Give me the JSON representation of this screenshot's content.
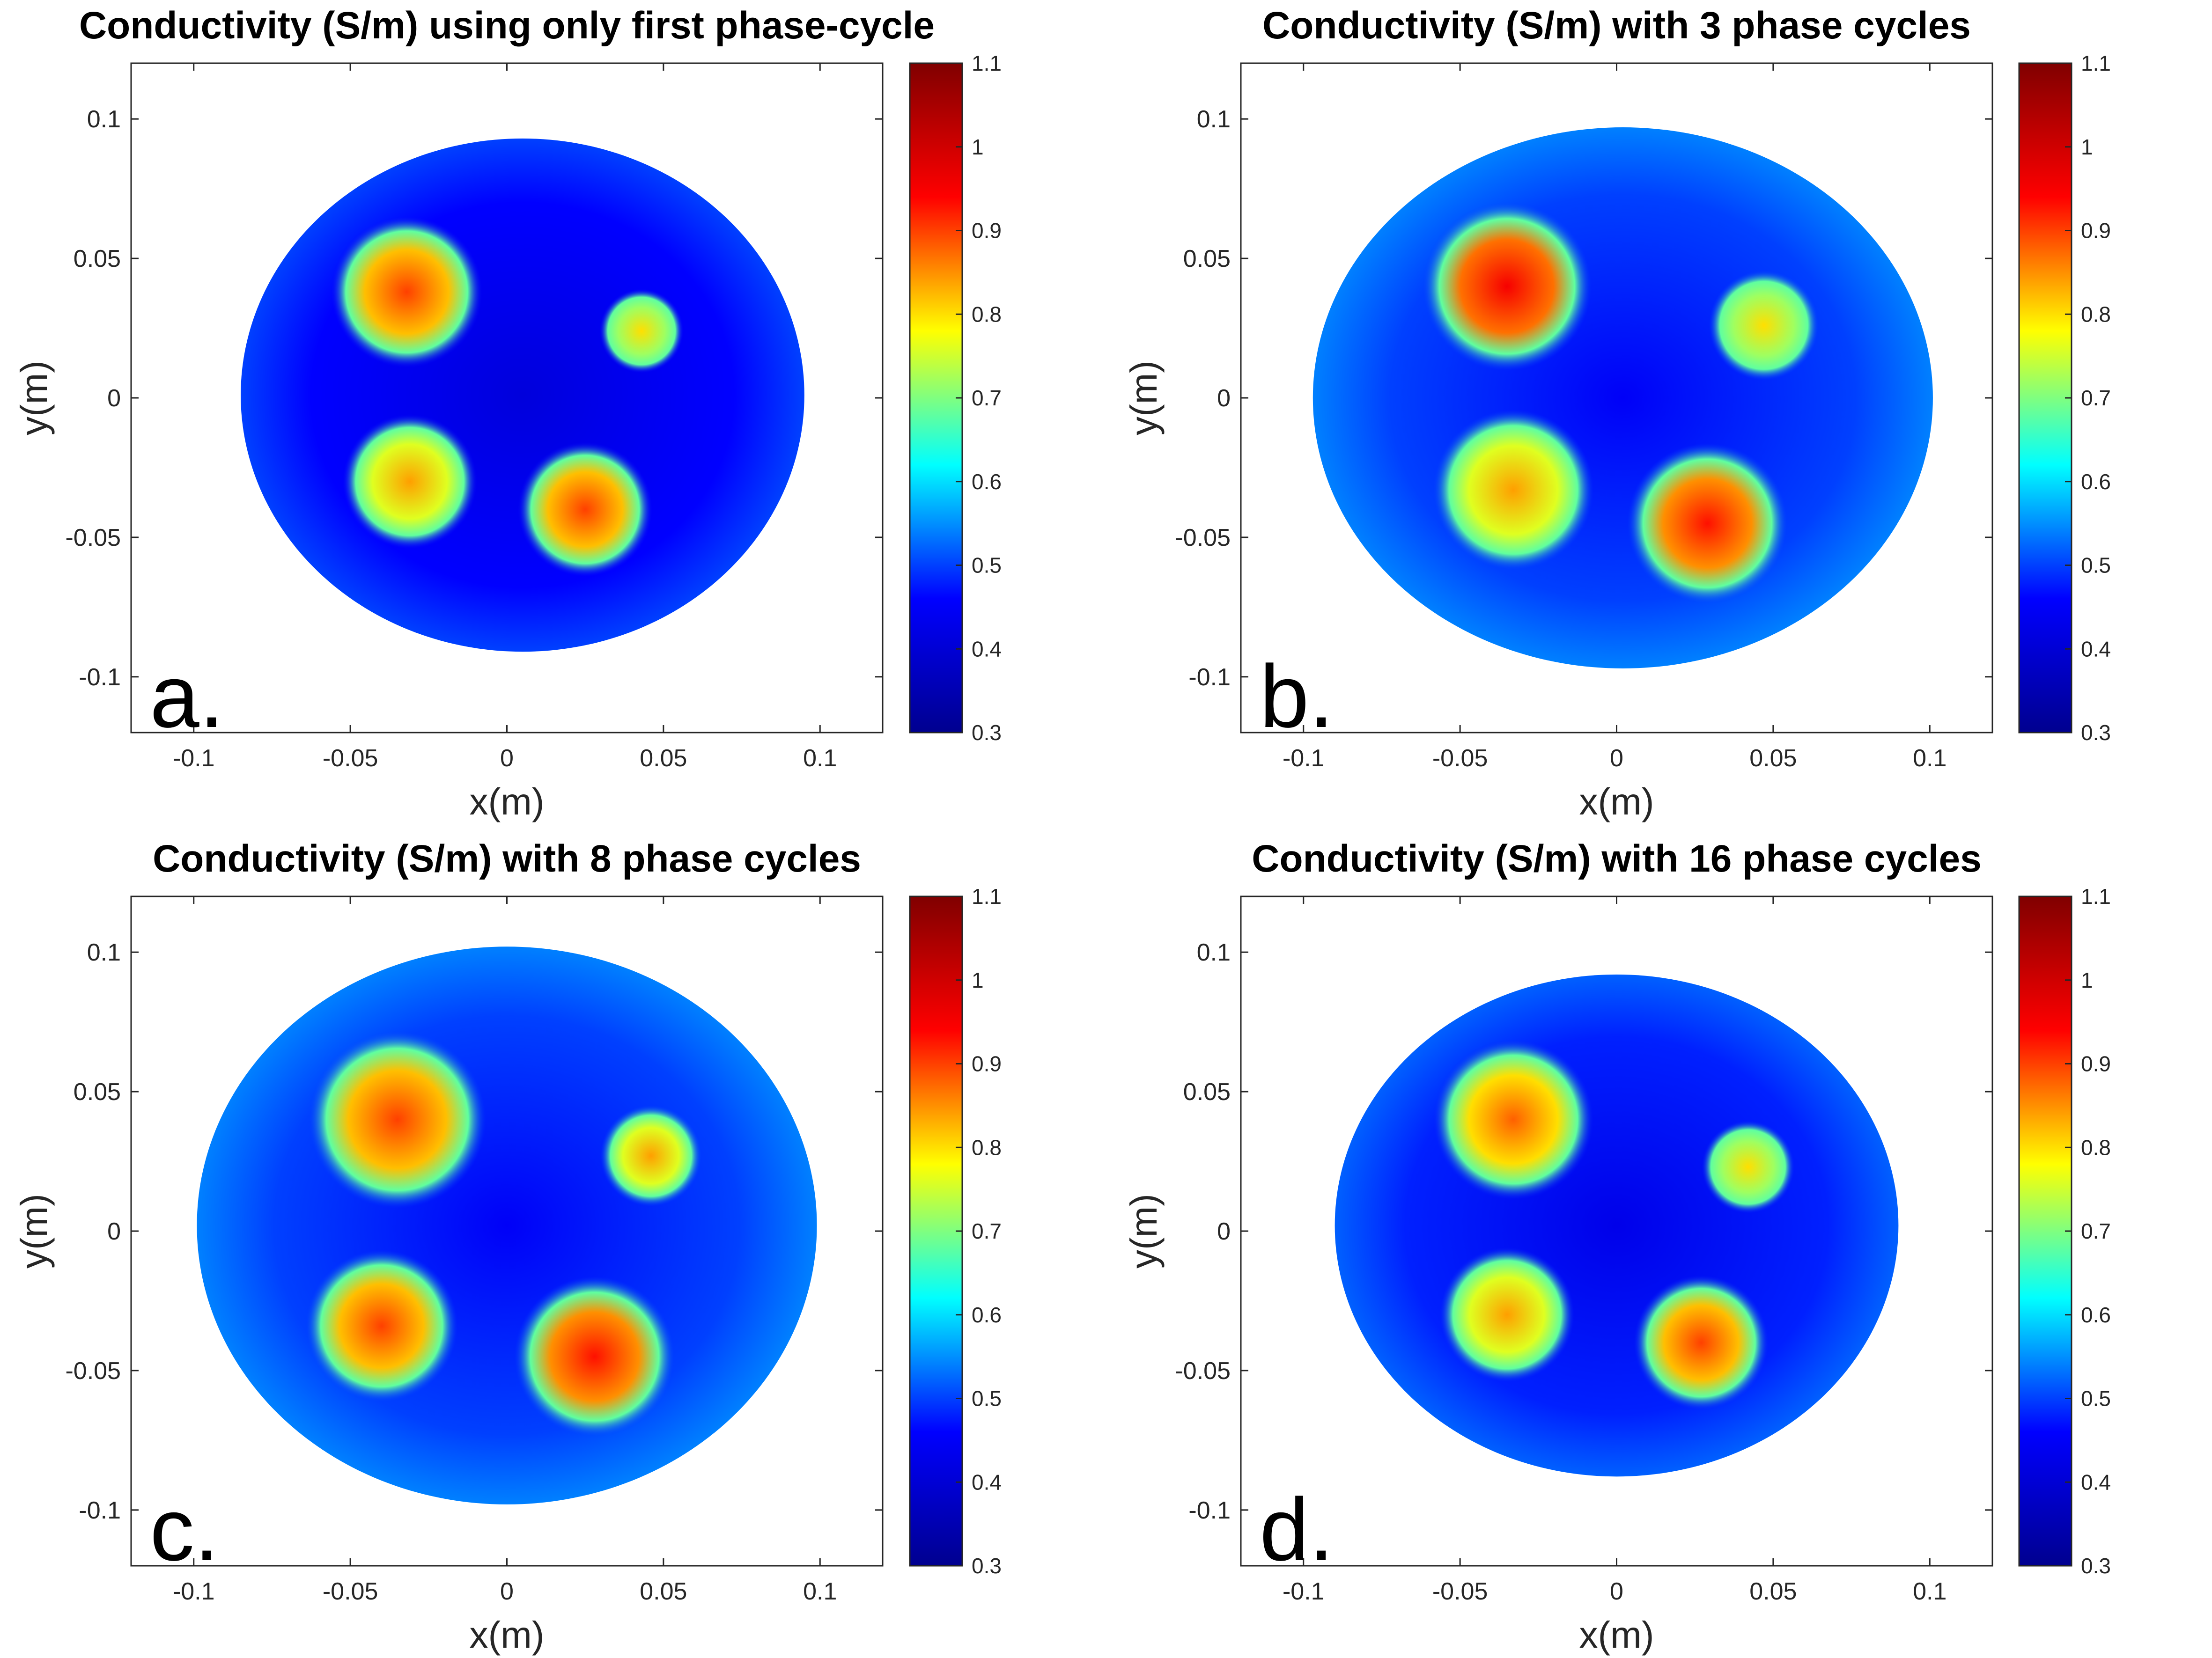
{
  "figure": {
    "colormap": [
      "#00008f",
      "#0000ff",
      "#00ffff",
      "#ffff00",
      "#ff0000",
      "#800000"
    ],
    "axes_color": "#262626",
    "panels": [
      {
        "panel_label": "a.",
        "chart_data": {
          "type": "heatmap",
          "title": "Conductivity (S/m) using only first phase-cycle",
          "xlabel": "x(m)",
          "ylabel": "y(m)",
          "xlim": [
            -0.12,
            0.12
          ],
          "ylim": [
            -0.12,
            0.12
          ],
          "x_ticks": [
            -0.1,
            -0.05,
            0,
            0.05,
            0.1
          ],
          "x_tick_labels": [
            "-0.1",
            "-0.05",
            "0",
            "0.05",
            "0.1"
          ],
          "y_ticks": [
            0.1,
            0.05,
            0,
            -0.05,
            -0.1
          ],
          "y_tick_labels": [
            "0.1",
            "0.05",
            "0",
            "-0.05",
            "-0.1"
          ],
          "colorbar": {
            "range": [
              0.3,
              1.1
            ],
            "ticks": [
              1.1,
              1,
              0.9,
              0.8,
              0.7,
              0.6,
              0.5,
              0.4,
              0.3
            ],
            "tick_labels": [
              "1.1",
              "1",
              "0.9",
              "0.8",
              "0.7",
              "0.6",
              "0.5",
              "0.4",
              "0.3"
            ]
          },
          "phantom": {
            "center": [
              0.005,
              0.001
            ],
            "rx": 0.09,
            "ry": 0.092,
            "background": 0.46
          },
          "inclusions": [
            {
              "x": -0.032,
              "y": 0.038,
              "r": 0.018,
              "peak": 0.9
            },
            {
              "x": 0.043,
              "y": 0.024,
              "r": 0.01,
              "peak": 0.8
            },
            {
              "x": -0.031,
              "y": -0.03,
              "r": 0.016,
              "peak": 0.84
            },
            {
              "x": 0.025,
              "y": -0.04,
              "r": 0.016,
              "peak": 0.9
            }
          ]
        }
      },
      {
        "panel_label": "b.",
        "chart_data": {
          "type": "heatmap",
          "title": "Conductivity (S/m) with 3 phase cycles",
          "xlabel": "x(m)",
          "ylabel": "y(m)",
          "xlim": [
            -0.12,
            0.12
          ],
          "ylim": [
            -0.12,
            0.12
          ],
          "x_ticks": [
            -0.1,
            -0.05,
            0,
            0.05,
            0.1
          ],
          "x_tick_labels": [
            "-0.1",
            "-0.05",
            "0",
            "0.05",
            "0.1"
          ],
          "y_ticks": [
            0.1,
            0.05,
            0,
            -0.05,
            -0.1
          ],
          "y_tick_labels": [
            "0.1",
            "0.05",
            "0",
            "-0.05",
            "-0.1"
          ],
          "colorbar": {
            "range": [
              0.3,
              1.1
            ],
            "ticks": [
              1.1,
              1,
              0.9,
              0.8,
              0.7,
              0.6,
              0.5,
              0.4,
              0.3
            ],
            "tick_labels": [
              "1.1",
              "1",
              "0.9",
              "0.8",
              "0.7",
              "0.6",
              "0.5",
              "0.4",
              "0.3"
            ]
          },
          "phantom": {
            "center": [
              0.002,
              0.0
            ],
            "rx": 0.099,
            "ry": 0.097,
            "background": 0.5
          },
          "inclusions": [
            {
              "x": -0.035,
              "y": 0.04,
              "r": 0.02,
              "peak": 0.95
            },
            {
              "x": 0.047,
              "y": 0.026,
              "r": 0.013,
              "peak": 0.8
            },
            {
              "x": -0.033,
              "y": -0.033,
              "r": 0.019,
              "peak": 0.84
            },
            {
              "x": 0.029,
              "y": -0.045,
              "r": 0.019,
              "peak": 0.93
            }
          ]
        }
      },
      {
        "panel_label": "c.",
        "chart_data": {
          "type": "heatmap",
          "title": "Conductivity (S/m) with 8 phase cycles",
          "xlabel": "x(m)",
          "ylabel": "y(m)",
          "xlim": [
            -0.12,
            0.12
          ],
          "ylim": [
            -0.12,
            0.12
          ],
          "x_ticks": [
            -0.1,
            -0.05,
            0,
            0.05,
            0.1
          ],
          "x_tick_labels": [
            "-0.1",
            "-0.05",
            "0",
            "0.05",
            "0.1"
          ],
          "y_ticks": [
            0.1,
            0.05,
            0,
            -0.05,
            -0.1
          ],
          "y_tick_labels": [
            "0.1",
            "0.05",
            "0",
            "-0.05",
            "-0.1"
          ],
          "colorbar": {
            "range": [
              0.3,
              1.1
            ],
            "ticks": [
              1.1,
              1,
              0.9,
              0.8,
              0.7,
              0.6,
              0.5,
              0.4,
              0.3
            ],
            "tick_labels": [
              "1.1",
              "1",
              "0.9",
              "0.8",
              "0.7",
              "0.6",
              "0.5",
              "0.4",
              "0.3"
            ]
          },
          "phantom": {
            "center": [
              0.0,
              0.002
            ],
            "rx": 0.099,
            "ry": 0.1,
            "background": 0.5
          },
          "inclusions": [
            {
              "x": -0.035,
              "y": 0.04,
              "r": 0.021,
              "peak": 0.9
            },
            {
              "x": 0.046,
              "y": 0.027,
              "r": 0.012,
              "peak": 0.84
            },
            {
              "x": -0.04,
              "y": -0.034,
              "r": 0.018,
              "peak": 0.9
            },
            {
              "x": 0.028,
              "y": -0.045,
              "r": 0.019,
              "peak": 0.93
            }
          ]
        }
      },
      {
        "panel_label": "d.",
        "chart_data": {
          "type": "heatmap",
          "title": "Conductivity (S/m) with 16 phase cycles",
          "xlabel": "x(m)",
          "ylabel": "y(m)",
          "xlim": [
            -0.12,
            0.12
          ],
          "ylim": [
            -0.12,
            0.12
          ],
          "x_ticks": [
            -0.1,
            -0.05,
            0,
            0.05,
            0.1
          ],
          "x_tick_labels": [
            "-0.1",
            "-0.05",
            "0",
            "0.05",
            "0.1"
          ],
          "y_ticks": [
            0.1,
            0.05,
            0,
            -0.05,
            -0.1
          ],
          "y_tick_labels": [
            "0.1",
            "0.05",
            "0",
            "-0.05",
            "-0.1"
          ],
          "colorbar": {
            "range": [
              0.3,
              1.1
            ],
            "ticks": [
              1.1,
              1,
              0.9,
              0.8,
              0.7,
              0.6,
              0.5,
              0.4,
              0.3
            ],
            "tick_labels": [
              "1.1",
              "1",
              "0.9",
              "0.8",
              "0.7",
              "0.6",
              "0.5",
              "0.4",
              "0.3"
            ]
          },
          "phantom": {
            "center": [
              0.0,
              0.002
            ],
            "rx": 0.09,
            "ry": 0.09,
            "background": 0.48
          },
          "inclusions": [
            {
              "x": -0.033,
              "y": 0.04,
              "r": 0.019,
              "peak": 0.88
            },
            {
              "x": 0.042,
              "y": 0.023,
              "r": 0.011,
              "peak": 0.8
            },
            {
              "x": -0.035,
              "y": -0.03,
              "r": 0.016,
              "peak": 0.84
            },
            {
              "x": 0.027,
              "y": -0.04,
              "r": 0.016,
              "peak": 0.9
            }
          ]
        }
      }
    ]
  }
}
